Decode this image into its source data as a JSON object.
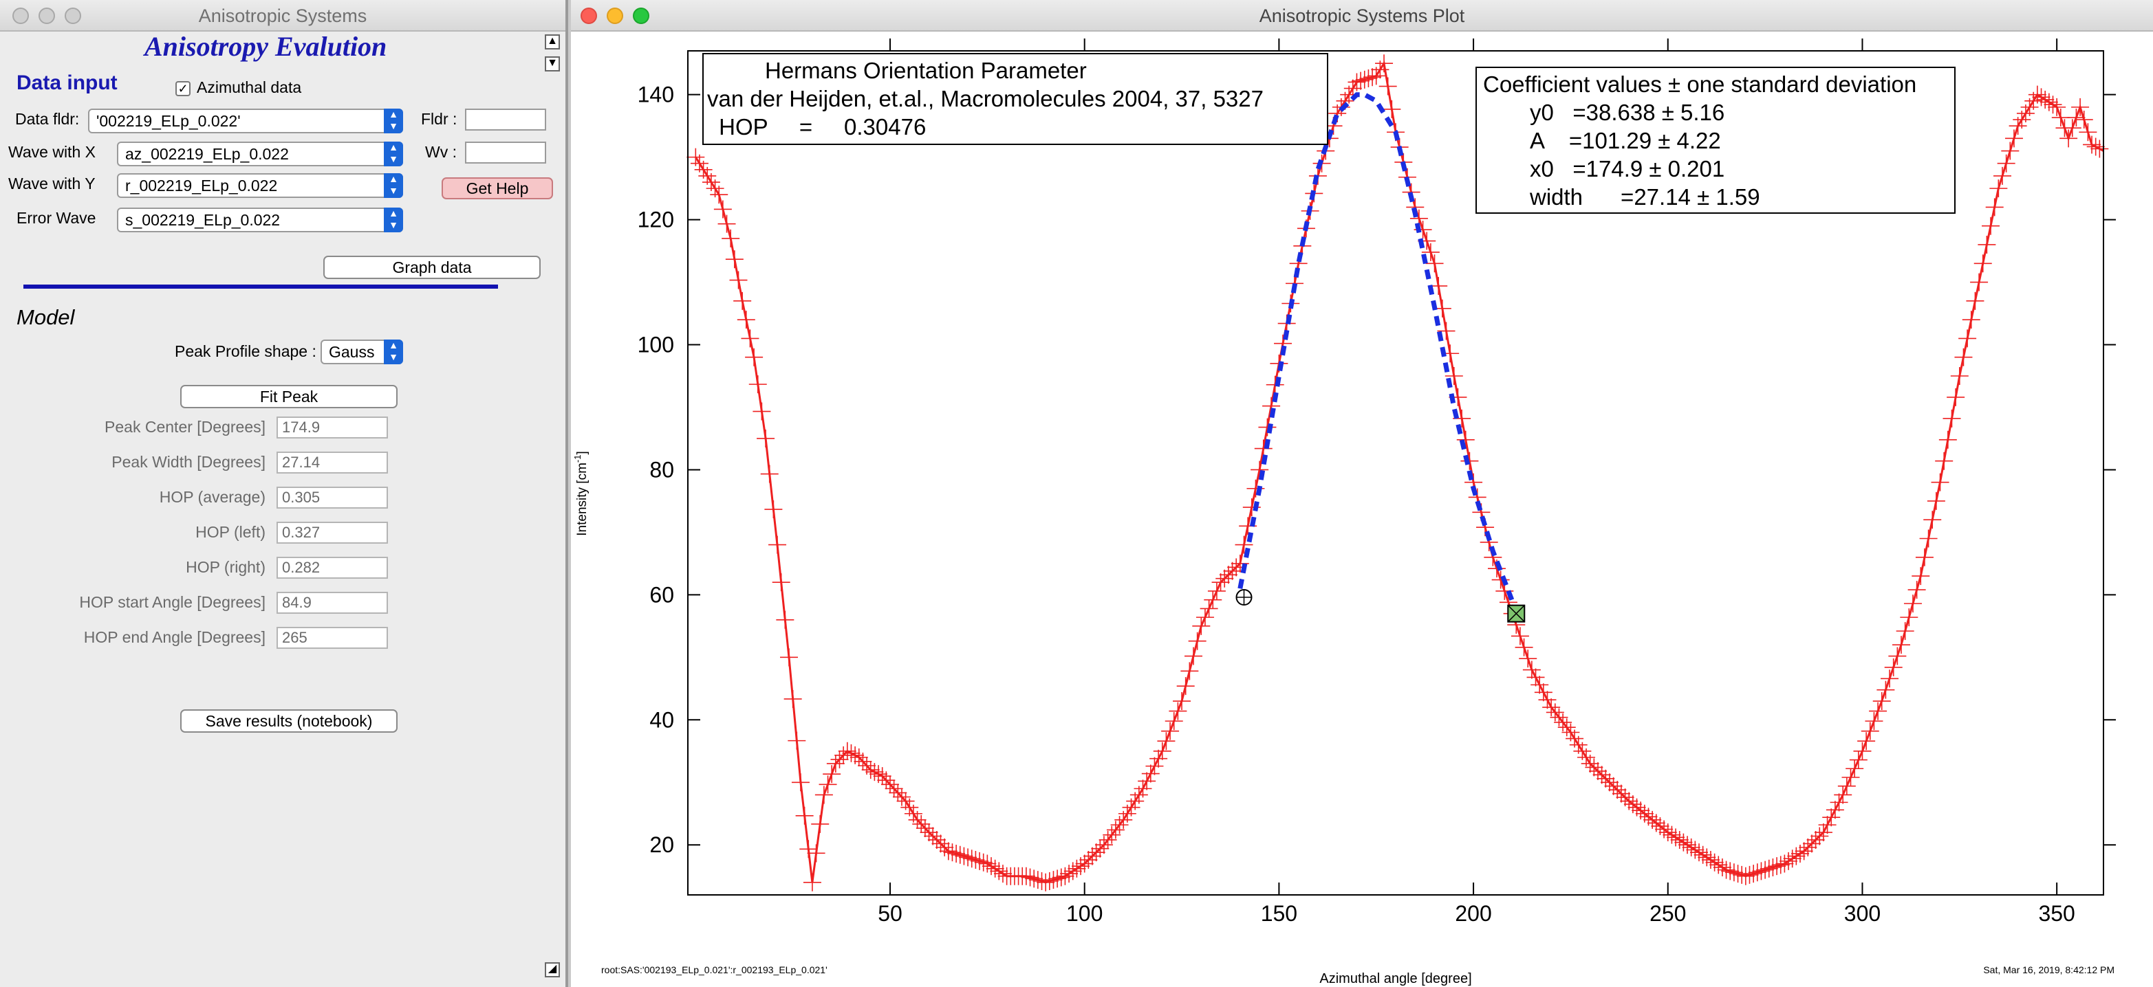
{
  "left_window": {
    "title": "Anisotropic Systems",
    "panel_title": "Anisotropy Evalution",
    "data_input_heading": "Data input",
    "azimuthal_label": "Azimuthal data",
    "azimuthal_checked": true,
    "data_fldr_label": "Data fldr:",
    "data_fldr_value": "'002219_ELp_0.022'",
    "fldr_label": "Fldr :",
    "wave_x_label": "Wave with X",
    "wave_x_value": "az_002219_ELp_0.022",
    "wv_label": "Wv :",
    "wave_y_label": "Wave with Y",
    "wave_y_value": "r_002219_ELp_0.022",
    "get_help_label": "Get Help",
    "error_wave_label": "Error Wave",
    "error_wave_value": "s_002219_ELp_0.022",
    "graph_data_label": "Graph data",
    "model_heading": "Model",
    "peak_profile_label": "Peak Profile shape :",
    "peak_profile_value": "Gauss",
    "fit_peak_label": "Fit Peak",
    "results": [
      {
        "label": "Peak Center [Degrees]",
        "value": "174.9"
      },
      {
        "label": "Peak Width [Degrees]",
        "value": "27.14"
      },
      {
        "label": "HOP (average)",
        "value": "0.305"
      },
      {
        "label": "HOP (left)",
        "value": "0.327"
      },
      {
        "label": "HOP (right)",
        "value": "0.282"
      },
      {
        "label": "HOP start Angle [Degrees]",
        "value": "84.9"
      },
      {
        "label": "HOP end Angle [Degrees]",
        "value": "265"
      }
    ],
    "save_results_label": "Save results (notebook)"
  },
  "right_window": {
    "title": "Anisotropic Systems Plot",
    "footer_left": "root:SAS:'002193_ELp_0.021':r_002193_ELp_0.021'",
    "footer_right": "Sat, Mar 16, 2019, 8:42:12 PM"
  },
  "colors": {
    "data": "#ee2020",
    "fit": "#1a2ee0",
    "accent": "#1b66d8",
    "heading": "#1a1ab0",
    "help_button": "#f6c6c8"
  },
  "chart_data": {
    "type": "line",
    "xlabel": "Azimuthal angle [degree]",
    "ylabel": "Intensity [cm",
    "ylabel_sup": "-1",
    "ylabel_close": "]",
    "xlim": [
      -2,
      362
    ],
    "ylim": [
      12,
      147
    ],
    "xticks": [
      50,
      100,
      150,
      200,
      250,
      300,
      350
    ],
    "yticks": [
      20,
      40,
      60,
      80,
      100,
      120,
      140
    ],
    "grid": false,
    "series": [
      {
        "style": "markers",
        "x": [
          0,
          3,
          6,
          9,
          12,
          15,
          18,
          21,
          24,
          27,
          30,
          33,
          36,
          39,
          42,
          45,
          48,
          51,
          54,
          57,
          60,
          65,
          70,
          75,
          80,
          85,
          90,
          95,
          100,
          105,
          110,
          115,
          120,
          125,
          130,
          135,
          140,
          145,
          150,
          155,
          160,
          165,
          170,
          175,
          177,
          180,
          185,
          190,
          195,
          200,
          205,
          210,
          215,
          220,
          225,
          230,
          240,
          250,
          260,
          265,
          270,
          275,
          280,
          285,
          290,
          295,
          300,
          305,
          310,
          315,
          320,
          325,
          330,
          335,
          340,
          345,
          350,
          353,
          356,
          359,
          362
        ],
        "y": [
          130,
          127,
          124,
          117,
          107,
          98,
          85,
          68,
          50,
          30,
          14,
          28,
          33,
          35,
          34,
          32,
          31,
          29,
          27,
          24,
          22,
          19,
          18,
          17,
          15,
          15,
          14,
          15,
          17,
          20,
          24,
          29,
          35,
          43,
          55,
          62,
          65,
          80,
          97,
          113,
          127,
          137,
          142,
          143,
          145,
          134,
          122,
          113,
          95,
          78,
          66,
          57,
          48,
          42,
          38,
          33,
          27,
          22,
          18,
          16,
          15,
          16,
          17,
          19,
          22,
          28,
          35,
          43,
          52,
          63,
          78,
          95,
          110,
          125,
          135,
          140,
          138,
          133,
          138,
          132,
          131
        ]
      },
      {
        "style": "dashed",
        "x": [
          140,
          145,
          150,
          155,
          160,
          165,
          170,
          172,
          175,
          180,
          185,
          190,
          195,
          200,
          205,
          210
        ],
        "y": [
          61,
          77,
          95,
          113,
          128,
          137,
          140,
          140,
          139,
          134,
          121,
          106,
          90,
          77,
          67,
          59
        ]
      }
    ],
    "markers": [
      {
        "shape": "circle-cross",
        "x": 141,
        "y": 59.6
      },
      {
        "shape": "box-cross",
        "x": 211,
        "y": 57
      }
    ],
    "annotations": [
      {
        "lines": [
          "Hermans Orientation Parameter",
          "van der Heijden, et.al., Macromolecules 2004, 37, 5327",
          " HOP     =     0.30476"
        ]
      },
      {
        "lines": [
          "Coefficient values ± one standard deviation",
          "y0   =38.638 ± 5.16",
          "A    =101.29 ± 4.22",
          "x0   =174.9 ± 0.201",
          "width      =27.14 ± 1.59"
        ]
      }
    ]
  }
}
